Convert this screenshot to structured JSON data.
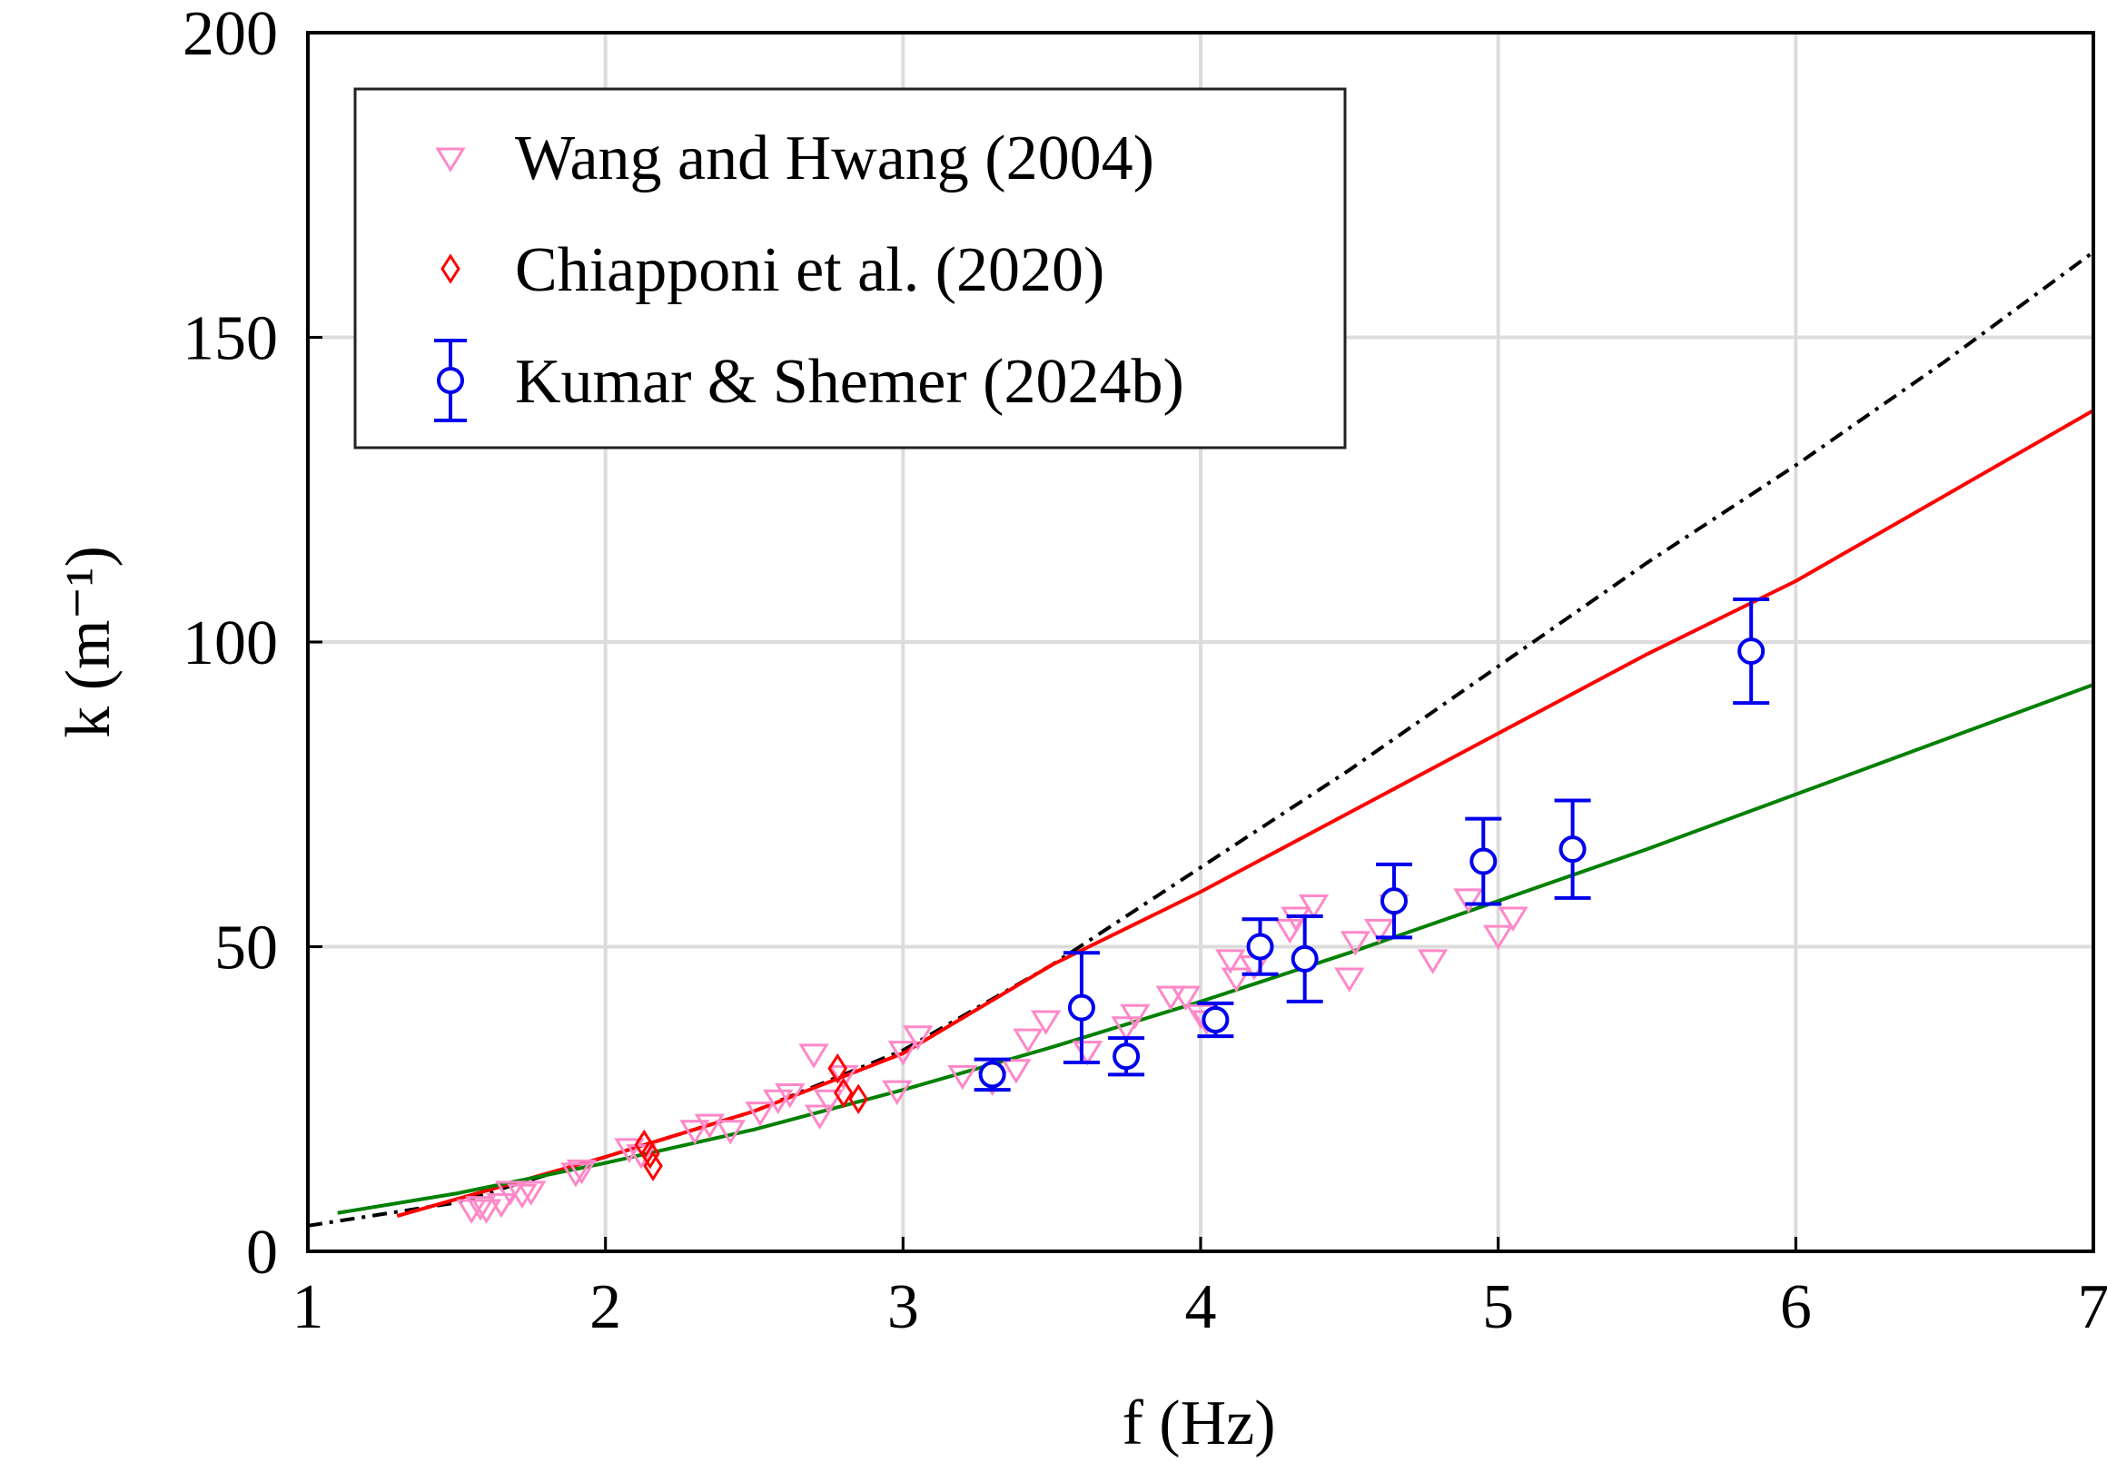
{
  "chart_data": {
    "type": "scatter",
    "xlabel": "f (Hz)",
    "ylabel": "k (m⁻¹)",
    "xlim": [
      1,
      7
    ],
    "ylim": [
      0,
      200
    ],
    "xticks": [
      1,
      2,
      3,
      4,
      5,
      6,
      7
    ],
    "yticks": [
      0,
      50,
      100,
      150,
      200
    ],
    "grid": true,
    "legend": "upper left",
    "series": [
      {
        "type": "line",
        "style": "dashdot",
        "color": "#000000",
        "x": [
          1,
          1.5,
          2,
          2.5,
          3,
          3.5,
          4,
          4.5,
          5,
          5.5,
          6,
          6.5,
          7
        ],
        "values": [
          4.2,
          8,
          15.5,
          23,
          33,
          47,
          63,
          79,
          96,
          113,
          129,
          146,
          164
        ]
      },
      {
        "type": "line",
        "style": "solid",
        "color": "#ff0000",
        "x": [
          1.3,
          2,
          2.5,
          3,
          3.5,
          4,
          4.5,
          5,
          5.5,
          6,
          6.5,
          7
        ],
        "values": [
          5.8,
          15.5,
          23,
          32.5,
          47,
          59,
          72,
          85,
          98,
          110,
          124,
          138
        ]
      },
      {
        "type": "line",
        "style": "solid",
        "color": "#008000",
        "x": [
          1.1,
          1.5,
          2,
          2.5,
          3,
          3.5,
          4,
          4.5,
          5,
          5.5,
          6,
          6.5,
          7
        ],
        "values": [
          6.3,
          9.5,
          14.5,
          20,
          26.5,
          33.5,
          41,
          49,
          57.5,
          66,
          75,
          84,
          93
        ]
      },
      {
        "type": "scatter",
        "name": "Wang and Hwang (2004)",
        "marker": "triangle-down",
        "color": "#ff88c8",
        "x": [
          1.55,
          1.58,
          1.6,
          1.65,
          1.68,
          1.72,
          1.75,
          1.9,
          1.92,
          2.08,
          2.12,
          2.3,
          2.35,
          2.42,
          2.52,
          2.58,
          2.62,
          2.72,
          2.7,
          2.75,
          2.8,
          2.98,
          3.0,
          3.05,
          3.2,
          3.3,
          3.38,
          3.42,
          3.48,
          3.62,
          3.75,
          3.78,
          3.9,
          3.95,
          4.0,
          4.02,
          4.1,
          4.12,
          4.18,
          4.3,
          4.32,
          4.38,
          4.5,
          4.52,
          4.6,
          4.65,
          4.78,
          4.9,
          5.0,
          5.05
        ],
        "values": [
          7,
          7.5,
          7,
          8,
          10,
          9.5,
          10,
          13,
          13.5,
          17,
          16,
          20,
          21,
          20,
          23,
          25,
          26,
          22.5,
          32.5,
          25,
          29,
          26.5,
          33,
          35.5,
          29,
          28,
          30,
          35,
          38,
          33,
          37,
          39,
          42,
          42,
          39,
          38,
          48,
          45,
          47,
          53,
          55,
          57,
          45,
          51,
          53,
          57,
          48,
          58,
          52,
          55
        ]
      },
      {
        "type": "scatter",
        "name": "Chiapponi et al. (2020)",
        "marker": "diamond",
        "color": "#ff0000",
        "x": [
          2.13,
          2.15,
          2.16,
          2.78,
          2.8,
          2.85
        ],
        "values": [
          17.5,
          16,
          14,
          30,
          26,
          25
        ]
      },
      {
        "type": "scatter",
        "name": "Kumar & Shemer (2024b)",
        "marker": "circle",
        "color": "#0000ee",
        "x": [
          3.3,
          3.6,
          3.75,
          4.05,
          4.2,
          4.35,
          4.65,
          4.95,
          5.25,
          5.85
        ],
        "values": [
          29,
          40,
          32,
          38,
          50,
          48,
          57.5,
          64,
          66,
          98.5
        ],
        "errors": [
          2.5,
          9,
          3,
          2.7,
          4.5,
          7,
          6,
          7,
          8,
          8.5
        ]
      }
    ]
  }
}
